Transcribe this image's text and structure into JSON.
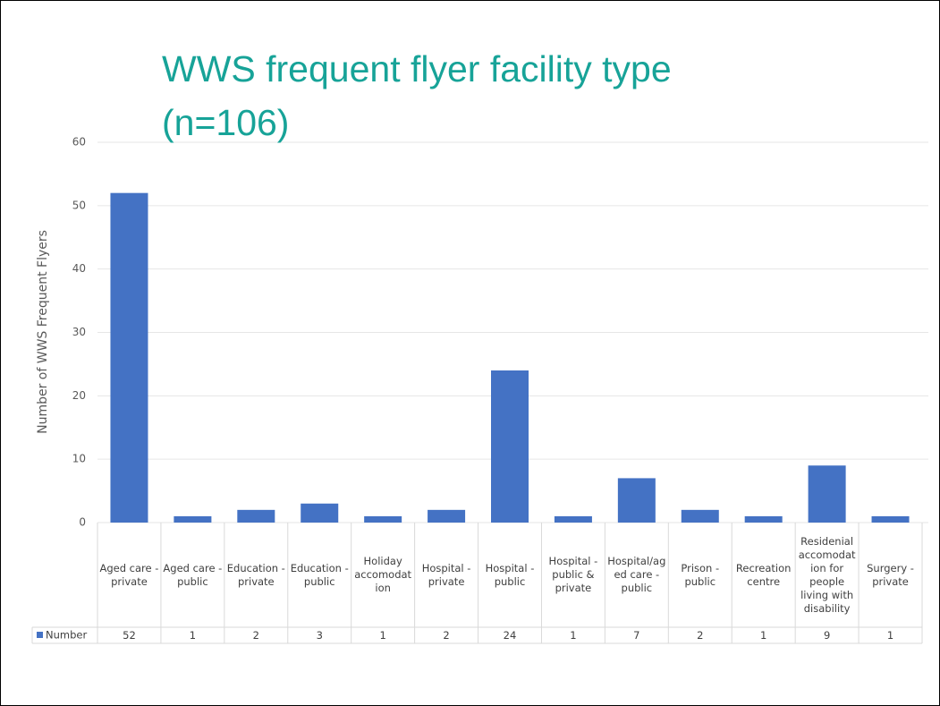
{
  "chart_data": {
    "type": "bar",
    "title": "WWS frequent flyer facility type (n=106)",
    "y_label": "Number of WWS Frequent Flyers",
    "categories": [
      "Aged care - private",
      "Aged care - public",
      "Education - private",
      "Education - public",
      "Holiday accomodation",
      "Hospital - private",
      "Hospital - public",
      "Hospital - public & private",
      "Hospital/aged care - public",
      "Prison - public",
      "Recreation centre",
      "Residenial accomodation for people living with disability",
      "Surgery - private"
    ],
    "series": [
      {
        "name": "Number",
        "color": "#4472c4",
        "values": [
          52,
          1,
          2,
          3,
          1,
          2,
          24,
          1,
          7,
          2,
          1,
          9,
          1
        ]
      }
    ],
    "ylim": [
      0,
      60
    ],
    "yticks": [
      0,
      10,
      20,
      30,
      40,
      50,
      60
    ],
    "grid": true,
    "data_table": true
  }
}
